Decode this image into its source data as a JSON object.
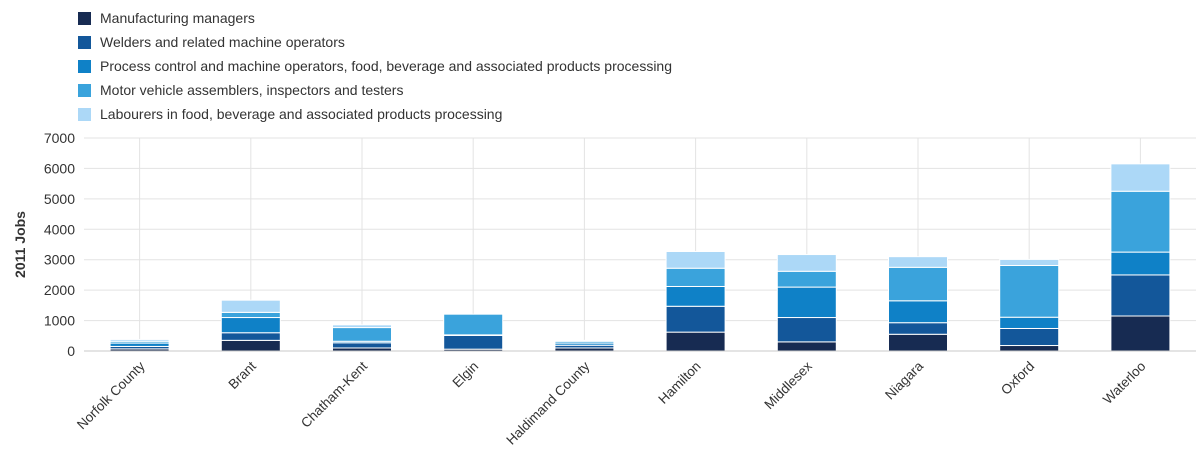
{
  "chart_data": {
    "type": "bar",
    "stacked": true,
    "ylabel": "2011 Jobs",
    "xlabel": "",
    "ylim": [
      0,
      7000
    ],
    "yticks": [
      0,
      1000,
      2000,
      3000,
      4000,
      5000,
      6000,
      7000
    ],
    "grid": true,
    "legend_position": "top-left",
    "categories": [
      "Norfolk County",
      "Brant",
      "Chatham-Kent",
      "Elgin",
      "Haldimand County",
      "Hamilton",
      "Middlesex",
      "Niagara",
      "Oxford",
      "Waterloo"
    ],
    "series": [
      {
        "name": "Manufacturing managers",
        "color": "#172b52",
        "values": [
          70,
          350,
          100,
          60,
          100,
          620,
          300,
          550,
          180,
          1150
        ]
      },
      {
        "name": "Welders and related machine operators",
        "color": "#13579a",
        "values": [
          80,
          250,
          170,
          450,
          90,
          850,
          800,
          380,
          560,
          1350
        ]
      },
      {
        "name": "Process control and machine operators, food, beverage and associated products processing",
        "color": "#0f81c7",
        "values": [
          110,
          500,
          50,
          20,
          70,
          650,
          1000,
          720,
          370,
          750
        ]
      },
      {
        "name": "Motor vehicle assemblers, inspectors and testers",
        "color": "#3aa3dc",
        "values": [
          60,
          170,
          450,
          680,
          60,
          600,
          520,
          1100,
          1700,
          2000
        ]
      },
      {
        "name": "Labourers in food, beverage and associated products processing",
        "color": "#acd8f7",
        "values": [
          60,
          400,
          90,
          0,
          30,
          550,
          550,
          350,
          200,
          900
        ]
      }
    ]
  }
}
